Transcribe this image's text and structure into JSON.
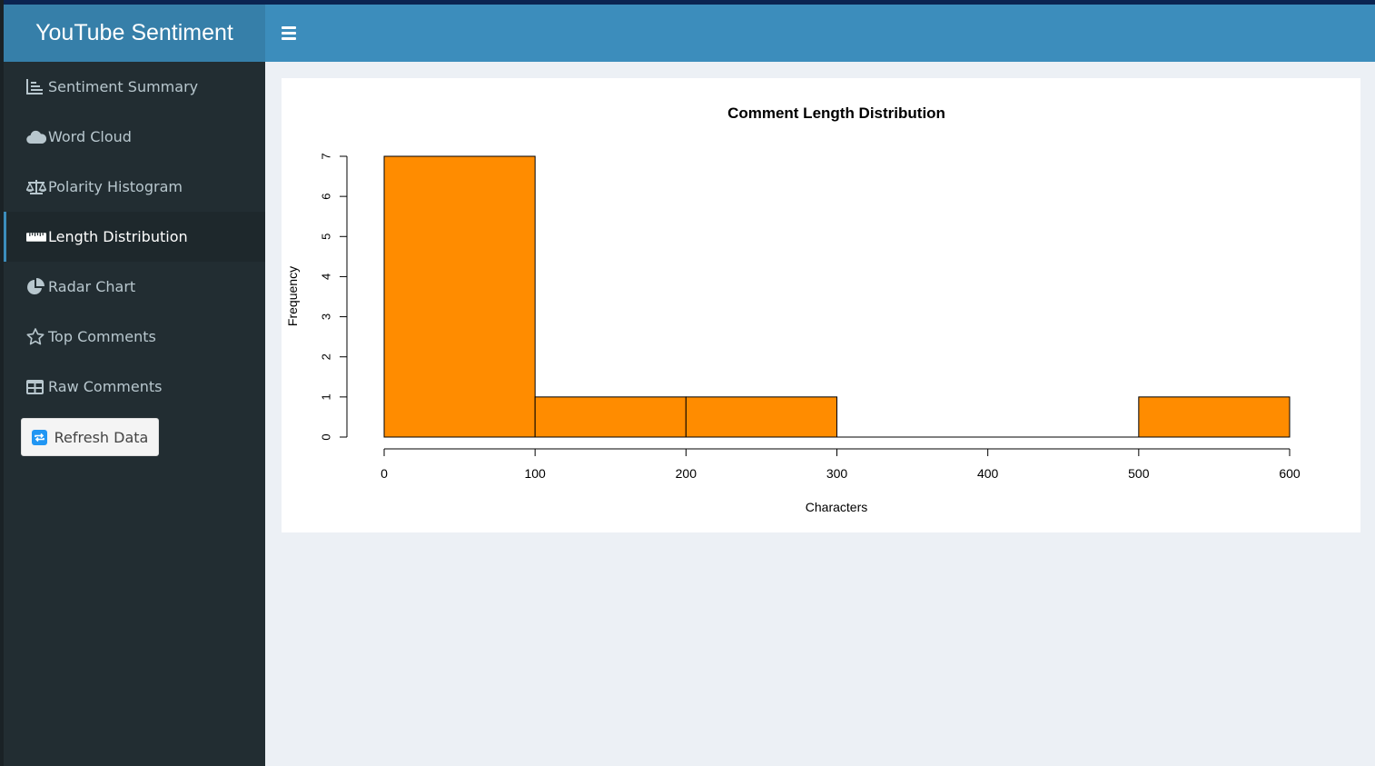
{
  "app": {
    "title": "YouTube Sentiment"
  },
  "colors": {
    "header": "#3c8dbc",
    "brand": "#367fa9",
    "sidebar": "#222d32",
    "bar": "#ff8c00"
  },
  "sidebar": {
    "items": [
      {
        "label": "Sentiment Summary",
        "icon": "chart-line-icon",
        "active": false
      },
      {
        "label": "Word Cloud",
        "icon": "cloud-icon",
        "active": false
      },
      {
        "label": "Polarity Histogram",
        "icon": "balance-scale-icon",
        "active": false
      },
      {
        "label": "Length Distribution",
        "icon": "ruler-icon",
        "active": true
      },
      {
        "label": "Radar Chart",
        "icon": "pie-chart-icon",
        "active": false
      },
      {
        "label": "Top Comments",
        "icon": "star-icon",
        "active": false
      },
      {
        "label": "Raw Comments",
        "icon": "table-icon",
        "active": false
      }
    ],
    "refresh_label": "Refresh Data"
  },
  "chart_data": {
    "type": "bar",
    "title": "Comment Length Distribution",
    "xlabel": "Characters",
    "ylabel": "Frequency",
    "bins": [
      [
        0,
        100
      ],
      [
        100,
        200
      ],
      [
        200,
        300
      ],
      [
        300,
        400
      ],
      [
        400,
        500
      ],
      [
        500,
        600
      ]
    ],
    "values": [
      7,
      1,
      1,
      0,
      0,
      1
    ],
    "xticks": [
      0,
      100,
      200,
      300,
      400,
      500,
      600
    ],
    "yticks": [
      0,
      1,
      2,
      3,
      4,
      5,
      6,
      7
    ],
    "xlim": [
      0,
      600
    ],
    "ylim": [
      0,
      7
    ],
    "grid": false,
    "bar_color": "#ff8c00"
  }
}
